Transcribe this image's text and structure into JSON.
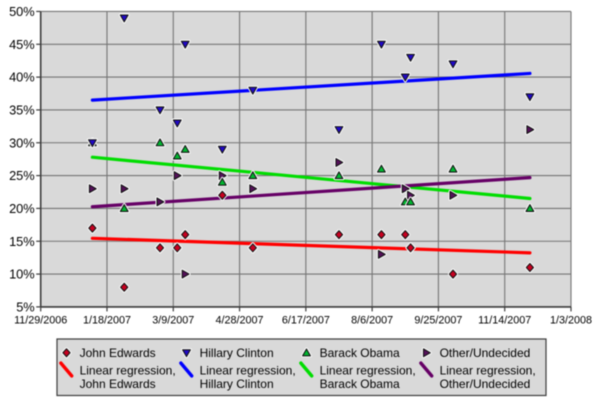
{
  "chart_data": {
    "type": "scatter",
    "description": "Polling percentages over time for 2008 Democratic presidential candidates with linear regression trend lines",
    "x_axis": {
      "unit": "date",
      "tick_labels": [
        "11/29/2006",
        "1/18/2007",
        "3/9/2007",
        "4/28/2007",
        "6/17/2007",
        "8/6/2007",
        "9/25/2007",
        "11/14/2007",
        "1/3/2008"
      ],
      "tick_day_offsets": [
        0,
        50,
        100,
        150,
        200,
        250,
        300,
        350,
        400
      ],
      "range_days": [
        0,
        400
      ]
    },
    "y_axis": {
      "unit": "%",
      "tick_labels": [
        "50%",
        "45%",
        "40%",
        "35%",
        "30%",
        "25%",
        "20%",
        "15%",
        "10%",
        "5%"
      ],
      "tick_values": [
        50,
        45,
        40,
        35,
        30,
        25,
        20,
        15,
        10,
        5
      ],
      "range": [
        5,
        50
      ],
      "grid": true
    },
    "poll_day_offsets": [
      39,
      63,
      90,
      103,
      109,
      137,
      160,
      225,
      257,
      275,
      279,
      311,
      369
    ],
    "series": [
      {
        "name": "John Edwards",
        "marker": "diamond",
        "marker_color": "#c80020",
        "regression_color": "#ff0000",
        "regression_legend": [
          "Linear regression,",
          "John Edwards"
        ],
        "values": [
          17,
          8,
          14,
          14,
          16,
          22,
          14,
          16,
          16,
          16,
          14,
          10,
          11
        ]
      },
      {
        "name": "Hillary Clinton",
        "marker": "triangle-down",
        "marker_color": "#2008c8",
        "regression_color": "#0000ff",
        "regression_legend": [
          "Linear regression,",
          "Hillary Clinton"
        ],
        "values": [
          30,
          49,
          35,
          33,
          45,
          29,
          38,
          32,
          45,
          40,
          43,
          42,
          37
        ]
      },
      {
        "name": "Barack Obama",
        "marker": "triangle-up",
        "marker_color": "#00b830",
        "regression_color": "#00dd00",
        "regression_legend": [
          "Linear regression,",
          "Barack Obama"
        ],
        "values": [
          30,
          20,
          30,
          28,
          29,
          24,
          25,
          25,
          26,
          21,
          21,
          26,
          20
        ]
      },
      {
        "name": "Other/Undecided",
        "marker": "triangle-right",
        "marker_color": "#55105a",
        "regression_color": "#660066",
        "regression_legend": [
          "Linear regression,",
          "Other/Undecided"
        ],
        "values": [
          23,
          23,
          21,
          25,
          10,
          25,
          23,
          27,
          13,
          23,
          22,
          22,
          32
        ]
      }
    ],
    "colors": {
      "plot_background": "#d9d9d9",
      "gridline": "#757575",
      "axis": "#3c3c3c",
      "legend_border": "#3c3c3c",
      "marker_outline": "#141414",
      "marker_halo": "#ffffff",
      "text": "#000000"
    },
    "legend": {
      "position": "bottom",
      "rows": 2,
      "columns": 4
    }
  }
}
